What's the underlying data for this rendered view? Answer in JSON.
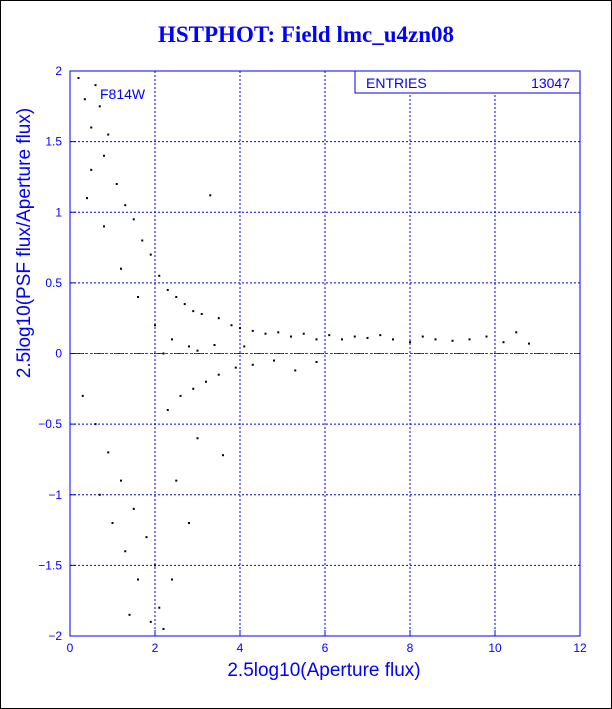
{
  "title": "HSTPHOT: Field lmc_u4zn08",
  "filter_label": "F814W",
  "stats": {
    "entries_label": "ENTRIES",
    "entries_value": "13047"
  },
  "colors": {
    "frame": "#0000ff",
    "grid": "#0000ff",
    "points": "#000000",
    "zero_line": "#ff0000",
    "text": "#0000ff"
  },
  "chart_data": {
    "type": "scatter",
    "title": "HSTPHOT: Field lmc_u4zn08",
    "xlabel": "2.5log10(Aperture flux)",
    "ylabel": "2.5log10(PSF flux/Aperture flux)",
    "xlim": [
      0,
      12
    ],
    "ylim": [
      -2,
      2
    ],
    "xticks": [
      0,
      2,
      4,
      6,
      8,
      10,
      12
    ],
    "xtick_labels": [
      "0",
      "2",
      "4",
      "6",
      "8",
      "10",
      "12"
    ],
    "yticks": [
      -2,
      -1.5,
      -1,
      -0.5,
      0,
      0.5,
      1,
      1.5,
      2
    ],
    "ytick_labels": [
      "−2",
      "−1.5",
      "−1",
      "−0.5",
      "0",
      "0.5",
      "1",
      "1.5",
      "2"
    ],
    "grid": true,
    "reference_line": {
      "y": 0,
      "style": "dashed",
      "color": "#ff0000"
    },
    "entries": 13047,
    "points": [
      [
        0.2,
        1.95
      ],
      [
        0.35,
        1.8
      ],
      [
        0.5,
        1.6
      ],
      [
        0.7,
        1.75
      ],
      [
        0.9,
        1.55
      ],
      [
        0.6,
        1.9
      ],
      [
        0.8,
        1.4
      ],
      [
        1.1,
        1.2
      ],
      [
        1.3,
        1.05
      ],
      [
        1.5,
        0.95
      ],
      [
        1.7,
        0.8
      ],
      [
        1.9,
        0.7
      ],
      [
        2.1,
        0.55
      ],
      [
        2.3,
        0.45
      ],
      [
        2.5,
        0.4
      ],
      [
        2.7,
        0.35
      ],
      [
        2.9,
        0.3
      ],
      [
        3.1,
        0.28
      ],
      [
        3.3,
        1.12
      ],
      [
        3.5,
        0.25
      ],
      [
        3.8,
        0.2
      ],
      [
        4.0,
        0.18
      ],
      [
        4.3,
        0.16
      ],
      [
        4.6,
        0.14
      ],
      [
        4.9,
        0.15
      ],
      [
        5.2,
        0.12
      ],
      [
        5.5,
        0.14
      ],
      [
        5.8,
        0.1
      ],
      [
        6.1,
        0.13
      ],
      [
        6.4,
        0.1
      ],
      [
        6.7,
        0.12
      ],
      [
        7.0,
        0.11
      ],
      [
        7.3,
        0.13
      ],
      [
        7.6,
        0.1
      ],
      [
        8.0,
        0.08
      ],
      [
        8.3,
        0.12
      ],
      [
        8.6,
        0.1
      ],
      [
        9.0,
        0.09
      ],
      [
        9.4,
        0.1
      ],
      [
        9.8,
        0.12
      ],
      [
        10.2,
        0.08
      ],
      [
        10.5,
        0.15
      ],
      [
        10.8,
        0.07
      ],
      [
        0.3,
        -0.3
      ],
      [
        0.6,
        -0.5
      ],
      [
        0.9,
        -0.7
      ],
      [
        1.2,
        -0.9
      ],
      [
        1.5,
        -1.1
      ],
      [
        1.8,
        -1.3
      ],
      [
        2.0,
        -1.5
      ],
      [
        2.1,
        -1.8
      ],
      [
        1.6,
        -1.6
      ],
      [
        1.3,
        -1.4
      ],
      [
        1.0,
        -1.2
      ],
      [
        0.7,
        -1.0
      ],
      [
        2.3,
        -0.4
      ],
      [
        2.6,
        -0.3
      ],
      [
        2.9,
        -0.25
      ],
      [
        3.2,
        -0.2
      ],
      [
        3.5,
        -0.15
      ],
      [
        3.9,
        -0.1
      ],
      [
        4.3,
        -0.08
      ],
      [
        4.8,
        -0.05
      ],
      [
        5.3,
        -0.12
      ],
      [
        5.8,
        -0.06
      ],
      [
        3.0,
        -0.6
      ],
      [
        3.6,
        -0.72
      ],
      [
        2.5,
        -0.9
      ],
      [
        2.8,
        -1.2
      ],
      [
        2.4,
        -1.6
      ],
      [
        2.2,
        -1.95
      ],
      [
        1.9,
        -1.9
      ],
      [
        1.4,
        -1.85
      ],
      [
        0.5,
        1.3
      ],
      [
        0.4,
        1.1
      ],
      [
        0.8,
        0.9
      ],
      [
        1.2,
        0.6
      ],
      [
        1.6,
        0.4
      ],
      [
        2.0,
        0.2
      ],
      [
        2.4,
        0.1
      ],
      [
        2.8,
        0.05
      ],
      [
        3.4,
        0.06
      ],
      [
        4.1,
        0.05
      ],
      [
        2.2,
        0.0
      ],
      [
        3.0,
        0.02
      ]
    ]
  }
}
